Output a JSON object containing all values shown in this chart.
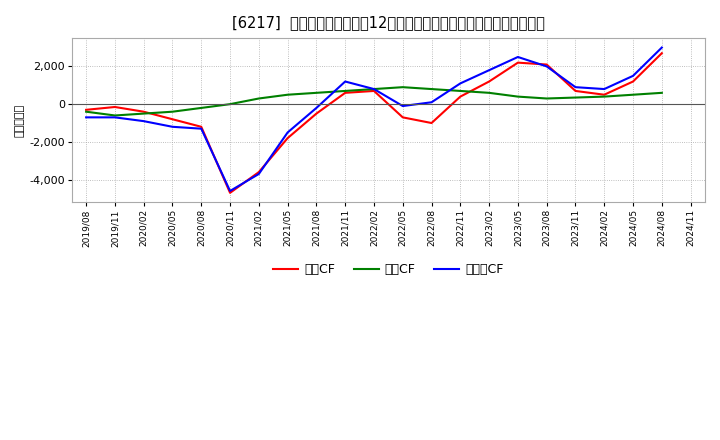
{
  "title": "[6217]  キャッシュフローの12か月移動合計の対前年同期増減額の推移",
  "ylabel": "（百万円）",
  "x_labels": [
    "2019/08",
    "2019/11",
    "2020/02",
    "2020/05",
    "2020/08",
    "2020/11",
    "2021/02",
    "2021/05",
    "2021/08",
    "2021/11",
    "2022/02",
    "2022/05",
    "2022/08",
    "2022/11",
    "2023/02",
    "2023/05",
    "2023/08",
    "2023/11",
    "2024/02",
    "2024/05",
    "2024/08",
    "2024/11"
  ],
  "eigyo_cf": [
    -300,
    -150,
    -400,
    -800,
    -1200,
    -4700,
    -3600,
    -1800,
    -500,
    600,
    700,
    -700,
    -1000,
    400,
    1200,
    2200,
    2100,
    700,
    500,
    1200,
    2700,
    null
  ],
  "toshi_cf": [
    -400,
    -600,
    -500,
    -400,
    -200,
    0,
    300,
    500,
    600,
    700,
    800,
    900,
    800,
    700,
    600,
    400,
    300,
    350,
    400,
    500,
    600,
    null
  ],
  "free_cf": [
    -700,
    -700,
    -900,
    -1200,
    -1300,
    -4600,
    -3700,
    -1500,
    -200,
    1200,
    800,
    -100,
    100,
    1100,
    1800,
    2500,
    2000,
    900,
    800,
    1500,
    3000,
    null
  ],
  "eigyo_color": "#ff0000",
  "toshi_color": "#008000",
  "free_color": "#0000ff",
  "ylim": [
    -5200,
    3500
  ],
  "yticks": [
    -4000,
    -2000,
    0,
    2000
  ],
  "background_color": "#ffffff",
  "grid_color": "#aaaaaa",
  "title_fontsize": 10.5
}
